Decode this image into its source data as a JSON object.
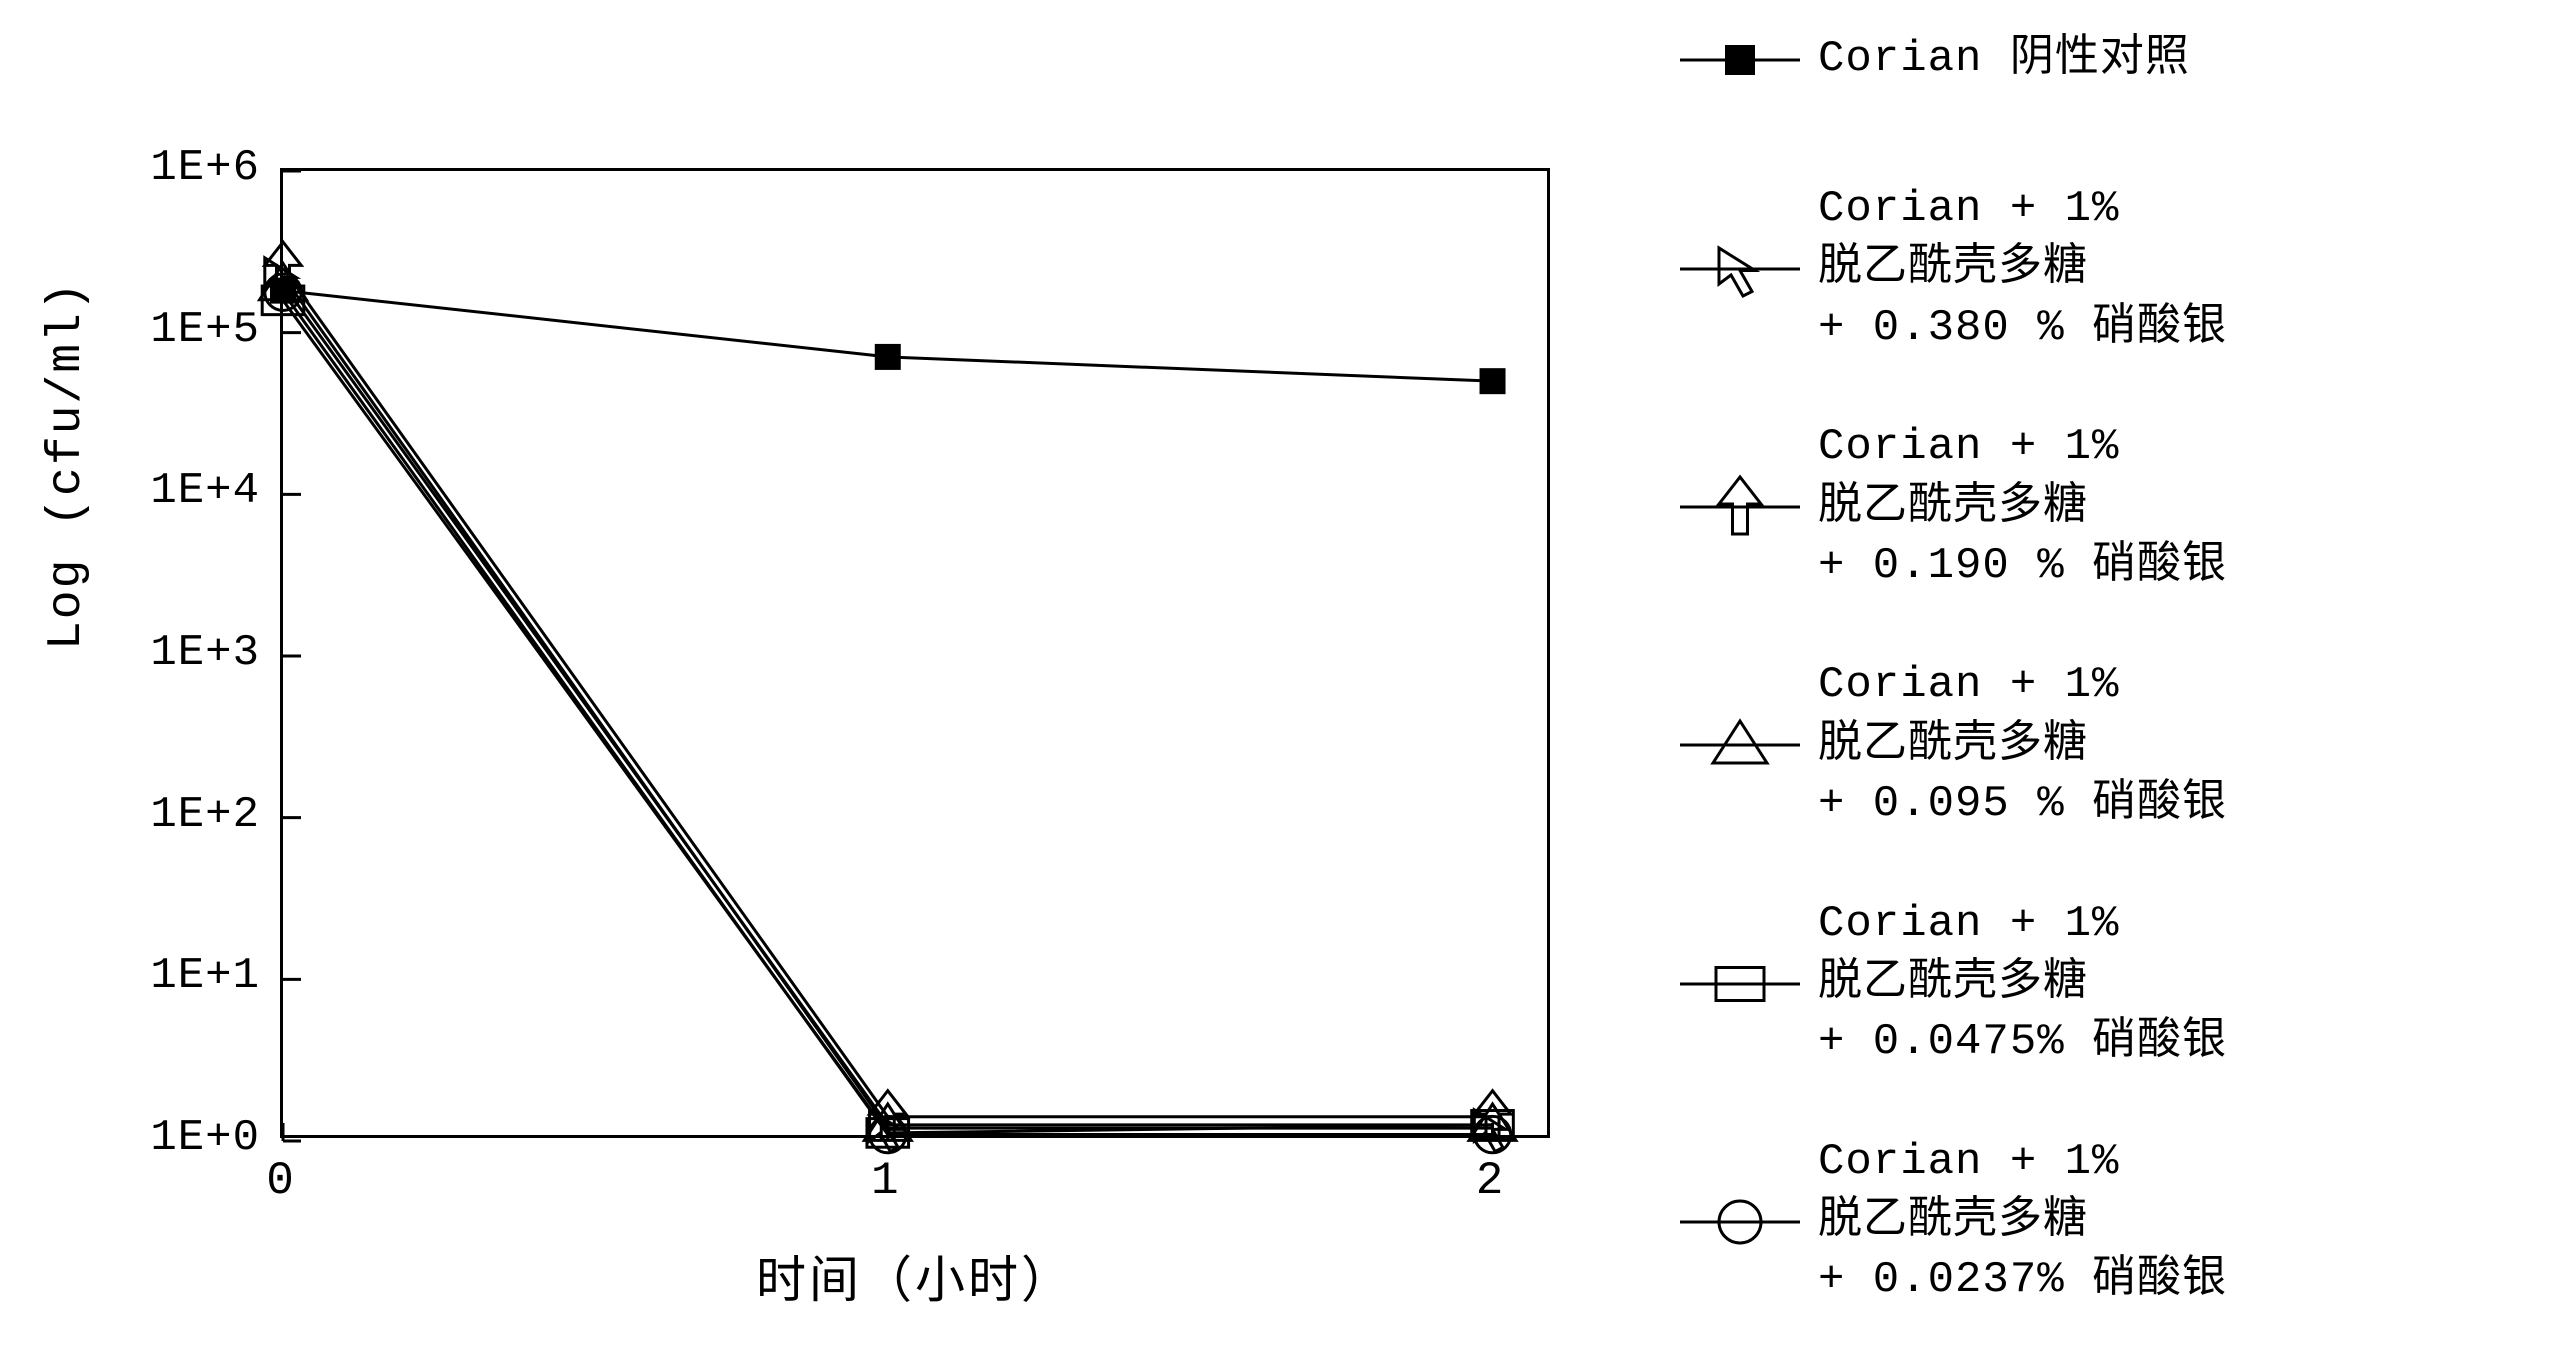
{
  "chart": {
    "type": "line",
    "y_label": "Log (cfu/ml)",
    "x_label": "时间（小时）",
    "background_color": "#ffffff",
    "line_color": "#000000",
    "stroke_width": 3,
    "x_ticks": [
      0,
      1,
      2
    ],
    "y_ticks": [
      "1E+0",
      "1E+1",
      "1E+2",
      "1E+3",
      "1E+4",
      "1E+5",
      "1E+6"
    ],
    "y_log_exponents": [
      0,
      1,
      2,
      3,
      4,
      5,
      6
    ],
    "ylim_log": [
      0,
      6
    ],
    "xlim": [
      0,
      2.1
    ],
    "font_size_axis_label": 48,
    "font_size_tick": 44,
    "marker_size": 26,
    "series": [
      {
        "name": "Corian 阴性对照",
        "marker": "filled-square",
        "color": "#000000",
        "x": [
          0,
          1,
          2
        ],
        "y_log": [
          5.26,
          4.85,
          4.7
        ]
      },
      {
        "name": "Corian + 1%\n脱乙酰壳多糖\n+ 0.380 % 硝酸银",
        "marker": "arrow-cursor",
        "color": "#000000",
        "x": [
          0,
          1,
          2
        ],
        "y_log": [
          5.35,
          0.08,
          0.08
        ]
      },
      {
        "name": "Corian + 1%\n脱乙酰壳多糖\n+ 0.190 % 硝酸银",
        "marker": "arrow-up",
        "color": "#000000",
        "x": [
          0,
          1,
          2
        ],
        "y_log": [
          5.4,
          0.15,
          0.15
        ]
      },
      {
        "name": "Corian + 1%\n脱乙酰壳多糖\n+ 0.095 % 硝酸银",
        "marker": "triangle",
        "color": "#000000",
        "x": [
          0,
          1,
          2
        ],
        "y_log": [
          5.3,
          0.1,
          0.1
        ]
      },
      {
        "name": "Corian + 1%\n脱乙酰壳多糖\n+ 0.0475% 硝酸银",
        "marker": "square",
        "color": "#000000",
        "x": [
          0,
          1,
          2
        ],
        "y_log": [
          5.2,
          0.05,
          0.1
        ]
      },
      {
        "name": "Corian + 1%\n脱乙酰壳多糖\n+ 0.0237% 硝酸银",
        "marker": "circle",
        "color": "#000000",
        "x": [
          0,
          1,
          2
        ],
        "y_log": [
          5.25,
          0.04,
          0.04
        ]
      }
    ]
  }
}
